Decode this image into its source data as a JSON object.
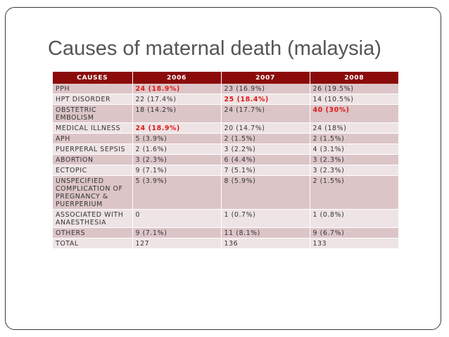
{
  "slide": {
    "title": "Causes of maternal death (malaysia)"
  },
  "table": {
    "headers": [
      "CAUSES",
      "2006",
      "2007",
      "2008"
    ],
    "highlight_color": "#e01616",
    "header_color": "#8b0a0a",
    "rows": [
      {
        "cause": "PPH",
        "values": [
          "24 (18.9%)",
          "23 (16.9%)",
          "26 (19.5%)"
        ],
        "highlight": [
          true,
          false,
          false
        ]
      },
      {
        "cause": "HPT DISORDER",
        "values": [
          "22 (17.4%)",
          "25 (18.4%)",
          "14 (10.5%)"
        ],
        "highlight": [
          false,
          true,
          false
        ]
      },
      {
        "cause": "OBSTETRIC EMBOLISM",
        "values": [
          "18 (14.2%)",
          "24 (17.7%)",
          "40 (30%)"
        ],
        "highlight": [
          false,
          false,
          true
        ]
      },
      {
        "cause": "MEDICAL ILLNESS",
        "values": [
          "24 (18.9%)",
          "20 (14.7%)",
          "24 (18%)"
        ],
        "highlight": [
          true,
          false,
          false
        ]
      },
      {
        "cause": "APH",
        "values": [
          "5 (3.9%)",
          "2 (1.5%)",
          "2 (1.5%)"
        ],
        "highlight": [
          false,
          false,
          false
        ]
      },
      {
        "cause": "PUERPERAL SEPSIS",
        "values": [
          "2 (1.6%)",
          "3 (2.2%)",
          "4 (3.1%)"
        ],
        "highlight": [
          false,
          false,
          false
        ]
      },
      {
        "cause": "ABORTION",
        "values": [
          "3 (2.3%)",
          "6 (4.4%)",
          "3 (2.3%)"
        ],
        "highlight": [
          false,
          false,
          false
        ]
      },
      {
        "cause": "ECTOPIC",
        "values": [
          "9 (7.1%)",
          "7 (5.1%)",
          "3 (2.3%)"
        ],
        "highlight": [
          false,
          false,
          false
        ]
      },
      {
        "cause": "UNSPECIFIED COMPLICATION OF PREGNANCY & PUERPERIUM",
        "values": [
          "5 (3.9%)",
          "8 (5.9%)",
          "2 (1.5%)"
        ],
        "highlight": [
          false,
          false,
          false
        ]
      },
      {
        "cause": "ASSOCIATED WITH ANAESTHESIA",
        "values": [
          "0",
          "1 (0.7%)",
          "1 (0.8%)"
        ],
        "highlight": [
          false,
          false,
          false
        ]
      },
      {
        "cause": "OTHERS",
        "values": [
          "9 (7.1%)",
          "11 (8.1%)",
          "9 (6.7%)"
        ],
        "highlight": [
          false,
          false,
          false
        ]
      },
      {
        "cause": "TOTAL",
        "values": [
          "127",
          "136",
          "133"
        ],
        "highlight": [
          false,
          false,
          false
        ]
      }
    ]
  }
}
